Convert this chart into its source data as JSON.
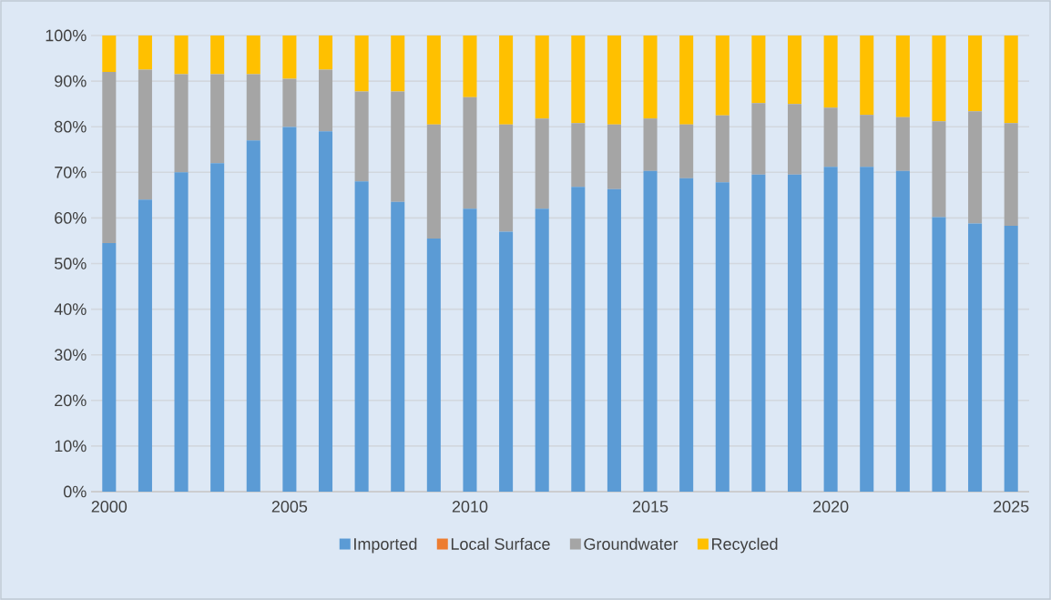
{
  "chart_data": {
    "type": "bar",
    "stacked": true,
    "categories": [
      "2000",
      null,
      null,
      null,
      null,
      "2005",
      null,
      null,
      null,
      null,
      "2010",
      null,
      null,
      null,
      null,
      "2015",
      null,
      null,
      null,
      null,
      "2020",
      null,
      null,
      null,
      null,
      "2025"
    ],
    "series": [
      {
        "name": "Imported",
        "color": "#5b9bd5",
        "values": [
          54.5,
          64,
          70,
          72,
          77,
          80,
          79,
          68,
          63.5,
          55.5,
          62,
          57,
          62,
          66.8,
          66.3,
          70.3,
          68.7,
          67.8,
          69.5,
          69.5,
          71.2,
          71.2,
          70.3,
          60.2,
          58.8,
          58.3
        ]
      },
      {
        "name": "Local Surface",
        "color": "#ed7d31",
        "values": [
          0,
          0,
          0,
          0,
          0,
          0,
          0,
          0,
          0,
          0,
          0,
          0,
          0,
          0,
          0,
          0,
          0,
          0,
          0,
          0,
          0,
          0,
          0,
          0,
          0,
          0
        ]
      },
      {
        "name": "Groundwater",
        "color": "#a5a5a5",
        "values": [
          37.5,
          28.5,
          21.5,
          19.5,
          14.5,
          10.5,
          13.5,
          19.7,
          24.2,
          25,
          24.5,
          23.5,
          19.8,
          14,
          14.2,
          11.5,
          11.8,
          14.7,
          15.7,
          15.5,
          13,
          11.4,
          11.8,
          21,
          24.6,
          22.5
        ]
      },
      {
        "name": "Recycled",
        "color": "#ffc000",
        "values": [
          8,
          7.5,
          8.5,
          8.5,
          8.5,
          9.5,
          7.5,
          12.3,
          12.3,
          19.5,
          13.5,
          19.5,
          18.2,
          19.2,
          19.5,
          18.2,
          19.5,
          17.5,
          14.8,
          15,
          15.8,
          17.4,
          17.9,
          18.8,
          16.6,
          19.2
        ]
      }
    ],
    "ylim": [
      0,
      100
    ],
    "yticks": [
      {
        "value": 0,
        "label": "0%"
      },
      {
        "value": 10,
        "label": "10%"
      },
      {
        "value": 20,
        "label": "20%"
      },
      {
        "value": 30,
        "label": "30%"
      },
      {
        "value": 40,
        "label": "40%"
      },
      {
        "value": 50,
        "label": "50%"
      },
      {
        "value": 60,
        "label": "60%"
      },
      {
        "value": 70,
        "label": "70%"
      },
      {
        "value": 80,
        "label": "80%"
      },
      {
        "value": 90,
        "label": "90%"
      },
      {
        "value": 100,
        "label": "100%"
      }
    ],
    "grid": "y",
    "legend": "bottom"
  }
}
